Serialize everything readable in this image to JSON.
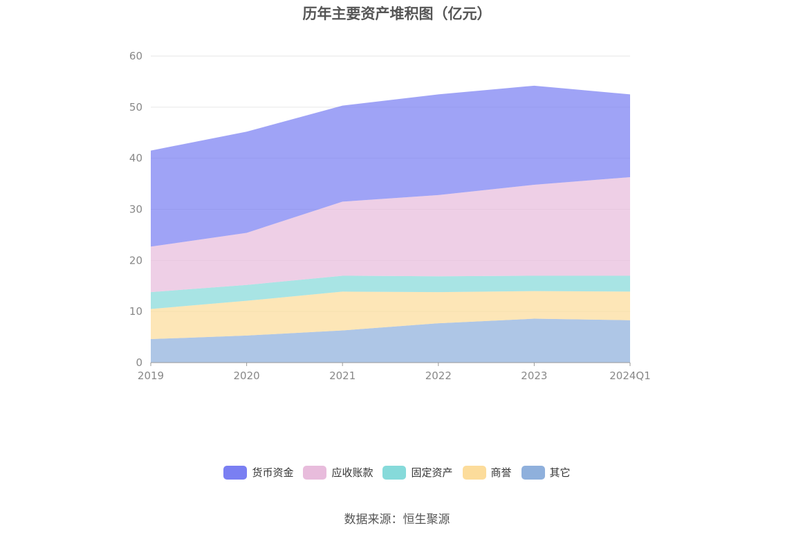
{
  "chart_data": {
    "type": "area",
    "stacked": true,
    "title": "历年主要资产堆积图（亿元）",
    "categories": [
      "2019",
      "2020",
      "2021",
      "2022",
      "2023",
      "2024Q1"
    ],
    "ylim": [
      0,
      60
    ],
    "yticks": [
      0,
      10,
      20,
      30,
      40,
      50,
      60
    ],
    "grid": true,
    "legend_position": "bottom",
    "series": [
      {
        "name": "其它",
        "color": "#8fb0dc",
        "values": [
          4.6,
          5.3,
          6.3,
          7.7,
          8.6,
          8.3
        ]
      },
      {
        "name": "商誉",
        "color": "#fcdc9b",
        "values": [
          5.9,
          6.8,
          7.6,
          6.1,
          5.4,
          5.6
        ]
      },
      {
        "name": "固定资产",
        "color": "#86dada",
        "values": [
          3.3,
          3.1,
          3.1,
          3.1,
          3.0,
          3.1
        ]
      },
      {
        "name": "应收账款",
        "color": "#e8bcdc",
        "values": [
          8.9,
          10.2,
          14.5,
          15.9,
          17.8,
          19.3
        ]
      },
      {
        "name": "货币资金",
        "color": "#7a7ff2",
        "values": [
          18.8,
          19.8,
          18.8,
          19.7,
          19.4,
          16.2
        ]
      }
    ],
    "legend_order": [
      "货币资金",
      "应收账款",
      "固定资产",
      "商誉",
      "其它"
    ],
    "source": "数据来源：恒生聚源"
  }
}
